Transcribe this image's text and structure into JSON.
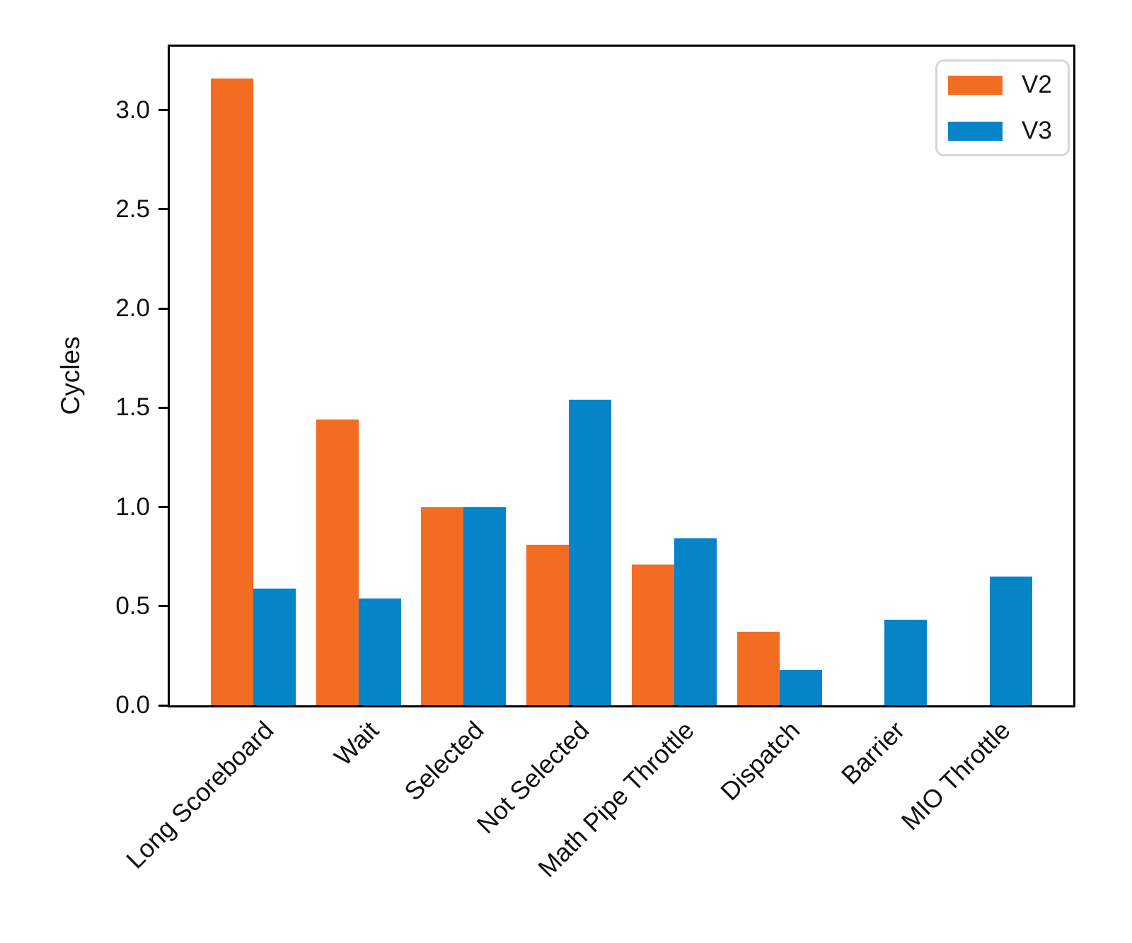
{
  "chart_data": {
    "type": "bar",
    "title": "",
    "xlabel": "",
    "ylabel": "Cycles",
    "categories": [
      "Long Scoreboard",
      "Wait",
      "Selected",
      "Not Selected",
      "Math Pipe Throttle",
      "Dispatch",
      "Barrier",
      "MIO Throttle"
    ],
    "series": [
      {
        "name": "V2",
        "color": "#f26c22",
        "values": [
          3.16,
          1.44,
          1.0,
          0.81,
          0.71,
          0.37,
          0,
          0
        ]
      },
      {
        "name": "V3",
        "color": "#0584c8",
        "values": [
          0.59,
          0.54,
          1.0,
          1.54,
          0.84,
          0.18,
          0.43,
          0.65
        ]
      }
    ],
    "ylim": [
      0,
      3.32
    ],
    "yticks": [
      "0.0",
      "0.5",
      "1.0",
      "1.5",
      "2.0",
      "2.5",
      "3.0"
    ],
    "grid": false,
    "legend_position": "upper right",
    "colors": {
      "v2": "#f26c22",
      "v3": "#0584c8",
      "spine": "#000000",
      "text": "#111111",
      "legend_border": "#d6d6d6",
      "background": "#ffffff"
    }
  },
  "legend": {
    "items": [
      {
        "label": "V2"
      },
      {
        "label": "V3"
      }
    ]
  }
}
